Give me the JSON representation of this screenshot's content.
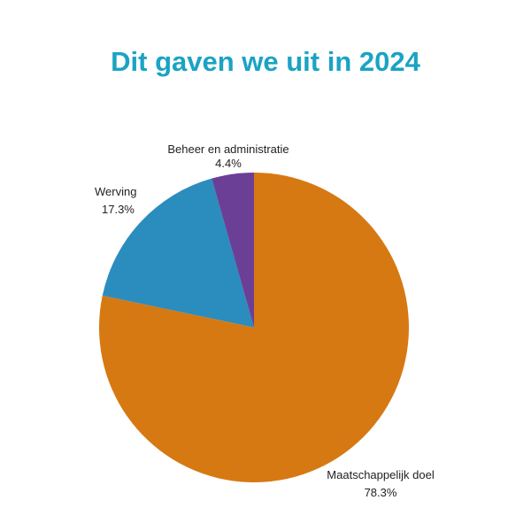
{
  "chart_data": {
    "type": "pie",
    "title": "Dit gaven we uit in 2024",
    "slices": [
      {
        "label": "Maatschappelijk doel",
        "value": 78.3,
        "display": "78.3%",
        "color": "#d67912"
      },
      {
        "label": "Werving",
        "value": 17.3,
        "display": "17.3%",
        "color": "#2b8cbe"
      },
      {
        "label": "Beheer en administratie",
        "value": 4.4,
        "display": "4.4%",
        "color": "#6b3f96"
      }
    ],
    "start": "12 o'clock",
    "direction": "clockwise"
  }
}
